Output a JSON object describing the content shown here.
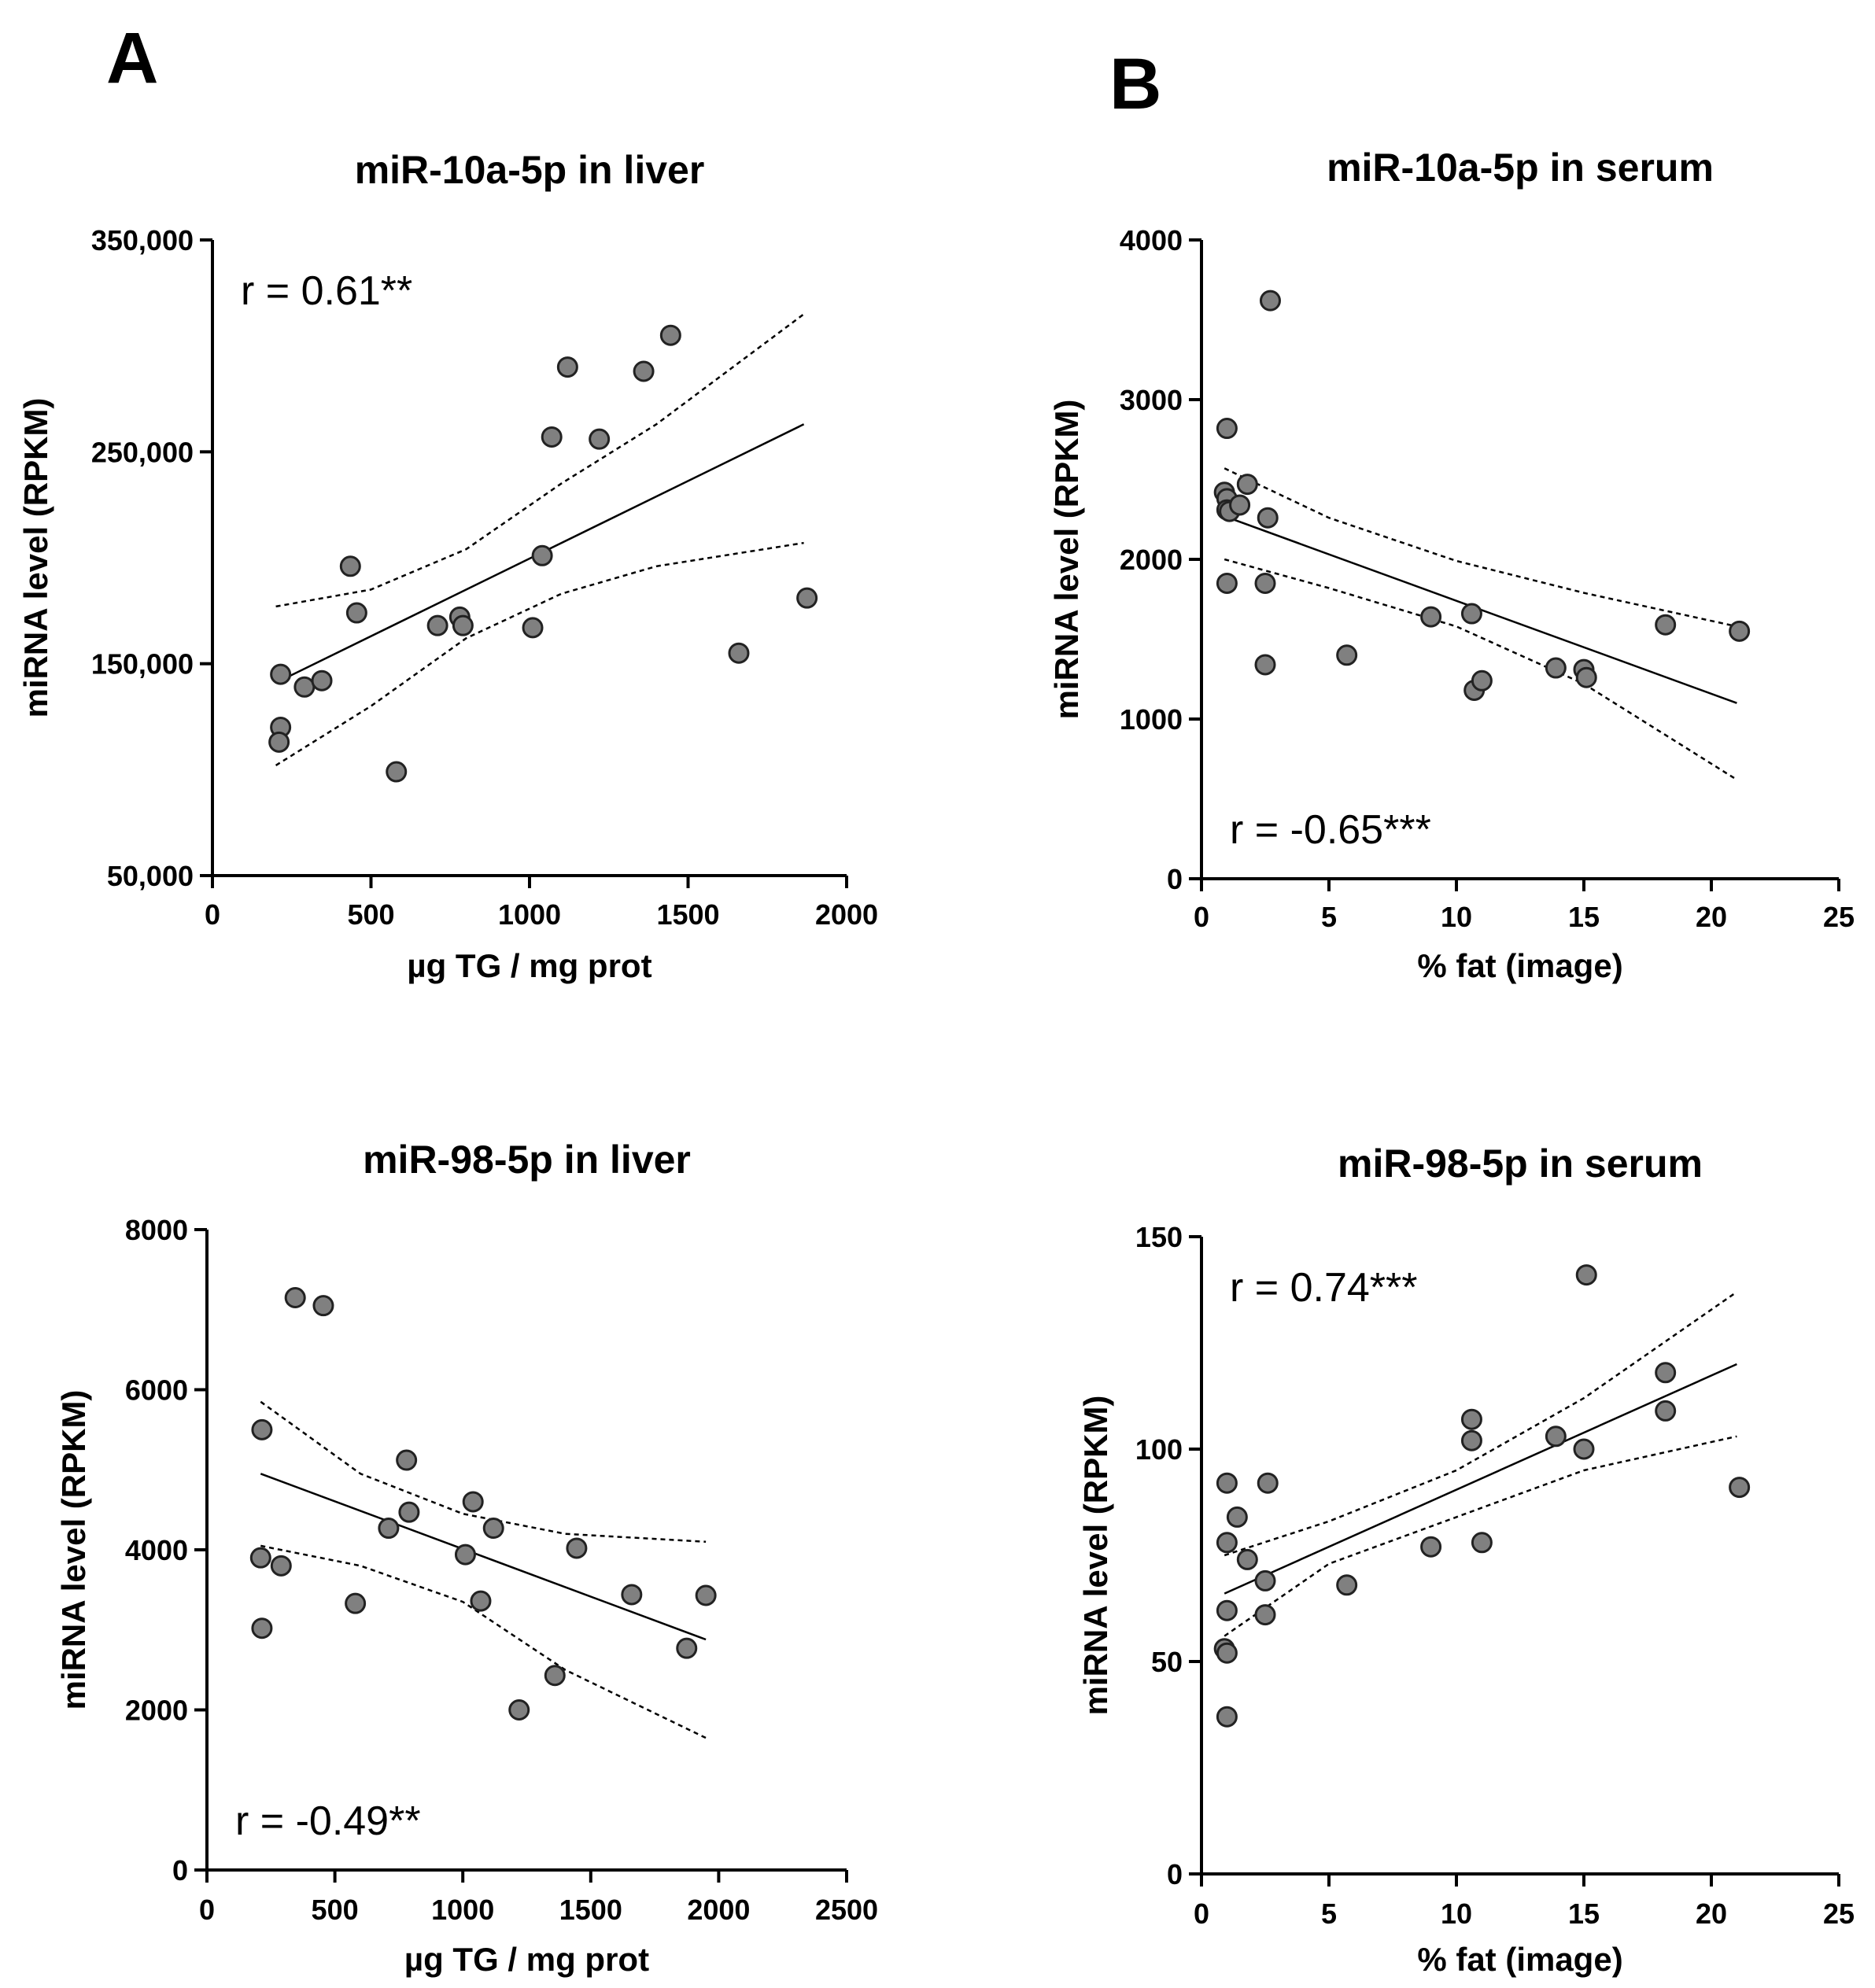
{
  "panel_labels": {
    "a": "A",
    "b": "B"
  },
  "chart_data": [
    {
      "id": "a-top",
      "type": "scatter",
      "title": "miR-10a-5p in liver",
      "xlabel": "µg TG / mg prot",
      "ylabel": "miRNA level (RPKM)",
      "xlim": [
        0,
        2000
      ],
      "ylim": [
        50000,
        350000
      ],
      "xticks": [
        0,
        500,
        1000,
        1500,
        2000
      ],
      "xticklabels": [
        "0",
        "500",
        "1000",
        "1500",
        "2000"
      ],
      "yticks": [
        50000,
        150000,
        250000,
        350000
      ],
      "yticklabels": [
        "50,000",
        "150,000",
        "250,000",
        "350,000"
      ],
      "annotation": "r = 0.61**",
      "annotation_position": "top-left",
      "point_color": "#808080",
      "points": [
        [
          215,
          145000
        ],
        [
          215,
          120000
        ],
        [
          210,
          113000
        ],
        [
          290,
          139000
        ],
        [
          345,
          142000
        ],
        [
          435,
          196000
        ],
        [
          455,
          174000
        ],
        [
          580,
          99000
        ],
        [
          710,
          168000
        ],
        [
          780,
          172000
        ],
        [
          790,
          168000
        ],
        [
          1010,
          167000
        ],
        [
          1040,
          201000
        ],
        [
          1070,
          257000
        ],
        [
          1120,
          290000
        ],
        [
          1220,
          256000
        ],
        [
          1360,
          288000
        ],
        [
          1445,
          305000
        ],
        [
          1660,
          155000
        ],
        [
          1875,
          181000
        ]
      ],
      "fit_line": [
        [
          200,
          141000
        ],
        [
          1865,
          263000
        ]
      ],
      "ci_upper": [
        [
          200,
          177000
        ],
        [
          500,
          185000
        ],
        [
          800,
          204000
        ],
        [
          1100,
          235000
        ],
        [
          1400,
          263000
        ],
        [
          1865,
          315000
        ]
      ],
      "ci_lower": [
        [
          200,
          102000
        ],
        [
          500,
          130000
        ],
        [
          800,
          162000
        ],
        [
          1100,
          183000
        ],
        [
          1400,
          196000
        ],
        [
          1865,
          207000
        ]
      ]
    },
    {
      "id": "b-top",
      "type": "scatter",
      "title": "miR-10a-5p in serum",
      "xlabel": "% fat (image)",
      "ylabel": "miRNA level (RPKM)",
      "xlim": [
        0,
        25
      ],
      "ylim": [
        0,
        4000
      ],
      "xticks": [
        0,
        5,
        10,
        15,
        20,
        25
      ],
      "xticklabels": [
        "0",
        "5",
        "10",
        "15",
        "20",
        "25"
      ],
      "yticks": [
        0,
        1000,
        2000,
        3000,
        4000
      ],
      "yticklabels": [
        "0",
        "1000",
        "2000",
        "3000",
        "4000"
      ],
      "annotation": "r = -0.65***",
      "annotation_position": "bottom-left",
      "point_color": "#808080",
      "points": [
        [
          1.0,
          2820
        ],
        [
          0.9,
          2420
        ],
        [
          1.0,
          2380
        ],
        [
          1.0,
          2310
        ],
        [
          1.1,
          2300
        ],
        [
          1.5,
          2340
        ],
        [
          1.8,
          2470
        ],
        [
          2.6,
          2260
        ],
        [
          2.7,
          3620
        ],
        [
          1.0,
          1850
        ],
        [
          2.5,
          1850
        ],
        [
          2.5,
          1340
        ],
        [
          5.7,
          1400
        ],
        [
          9.0,
          1640
        ],
        [
          10.6,
          1660
        ],
        [
          10.7,
          1180
        ],
        [
          11.0,
          1240
        ],
        [
          13.9,
          1320
        ],
        [
          15.0,
          1310
        ],
        [
          15.1,
          1260
        ],
        [
          18.2,
          1590
        ],
        [
          21.1,
          1550
        ]
      ],
      "fit_line": [
        [
          0.9,
          2270
        ],
        [
          21.0,
          1100
        ]
      ],
      "ci_upper": [
        [
          0.9,
          2570
        ],
        [
          5,
          2260
        ],
        [
          10,
          1990
        ],
        [
          15,
          1790
        ],
        [
          21.0,
          1580
        ]
      ],
      "ci_lower": [
        [
          0.9,
          2000
        ],
        [
          5,
          1820
        ],
        [
          10,
          1580
        ],
        [
          15,
          1220
        ],
        [
          21.0,
          620
        ]
      ]
    },
    {
      "id": "a-bottom",
      "type": "scatter",
      "title": "miR-98-5p in liver",
      "xlabel": "µg TG / mg prot",
      "ylabel": "miRNA level (RPKM)",
      "xlim": [
        0,
        2500
      ],
      "ylim": [
        0,
        8000
      ],
      "xticks": [
        0,
        500,
        1000,
        1500,
        2000,
        2500
      ],
      "xticklabels": [
        "0",
        "500",
        "1000",
        "1500",
        "2000",
        "2500"
      ],
      "yticks": [
        0,
        2000,
        4000,
        6000,
        8000
      ],
      "yticklabels": [
        "0",
        "2000",
        "4000",
        "6000",
        "8000"
      ],
      "annotation": "r = -0.49**",
      "annotation_position": "bottom-left",
      "point_color": "#808080",
      "points": [
        [
          215,
          5500
        ],
        [
          210,
          3900
        ],
        [
          215,
          3020
        ],
        [
          290,
          3800
        ],
        [
          345,
          7150
        ],
        [
          455,
          7050
        ],
        [
          580,
          3330
        ],
        [
          710,
          4270
        ],
        [
          780,
          5120
        ],
        [
          790,
          4470
        ],
        [
          1010,
          3940
        ],
        [
          1040,
          4600
        ],
        [
          1070,
          3360
        ],
        [
          1120,
          4270
        ],
        [
          1220,
          2000
        ],
        [
          1360,
          2430
        ],
        [
          1445,
          4020
        ],
        [
          1660,
          3440
        ],
        [
          1875,
          2770
        ],
        [
          1950,
          3430
        ]
      ],
      "fit_line": [
        [
          210,
          4950
        ],
        [
          1950,
          2880
        ]
      ],
      "ci_upper": [
        [
          210,
          5850
        ],
        [
          600,
          4950
        ],
        [
          1000,
          4450
        ],
        [
          1400,
          4200
        ],
        [
          1950,
          4100
        ]
      ],
      "ci_lower": [
        [
          210,
          4050
        ],
        [
          600,
          3800
        ],
        [
          1000,
          3350
        ],
        [
          1400,
          2500
        ],
        [
          1950,
          1650
        ]
      ]
    },
    {
      "id": "b-bottom",
      "type": "scatter",
      "title": "miR-98-5p in serum",
      "xlabel": "% fat (image)",
      "ylabel": "miRNA level (RPKM)",
      "xlim": [
        0,
        25
      ],
      "ylim": [
        0,
        150
      ],
      "xticks": [
        0,
        5,
        10,
        15,
        20,
        25
      ],
      "xticklabels": [
        "0",
        "5",
        "10",
        "15",
        "20",
        "25"
      ],
      "yticks": [
        0,
        50,
        100,
        150
      ],
      "yticklabels": [
        "0",
        "50",
        "100",
        "150"
      ],
      "annotation": "r = 0.74***",
      "annotation_position": "top-left",
      "point_color": "#808080",
      "points": [
        [
          1.0,
          92
        ],
        [
          1.0,
          78
        ],
        [
          1.0,
          62
        ],
        [
          0.9,
          53
        ],
        [
          1.0,
          52
        ],
        [
          1.0,
          37
        ],
        [
          1.4,
          84
        ],
        [
          1.8,
          74
        ],
        [
          2.5,
          69
        ],
        [
          2.5,
          61
        ],
        [
          2.6,
          92
        ],
        [
          5.7,
          68
        ],
        [
          9.0,
          77
        ],
        [
          10.6,
          107
        ],
        [
          10.6,
          102
        ],
        [
          11.0,
          78
        ],
        [
          13.9,
          103
        ],
        [
          15.0,
          100
        ],
        [
          15.1,
          141
        ],
        [
          18.2,
          118
        ],
        [
          18.2,
          109
        ],
        [
          21.1,
          91
        ]
      ],
      "fit_line": [
        [
          0.9,
          66
        ],
        [
          21.0,
          120
        ]
      ],
      "ci_upper": [
        [
          0.9,
          75
        ],
        [
          5,
          83
        ],
        [
          10,
          95
        ],
        [
          15,
          112
        ],
        [
          21.0,
          137
        ]
      ],
      "ci_lower": [
        [
          0.9,
          56
        ],
        [
          5,
          73
        ],
        [
          10,
          84
        ],
        [
          15,
          95
        ],
        [
          21.0,
          103
        ]
      ]
    }
  ]
}
